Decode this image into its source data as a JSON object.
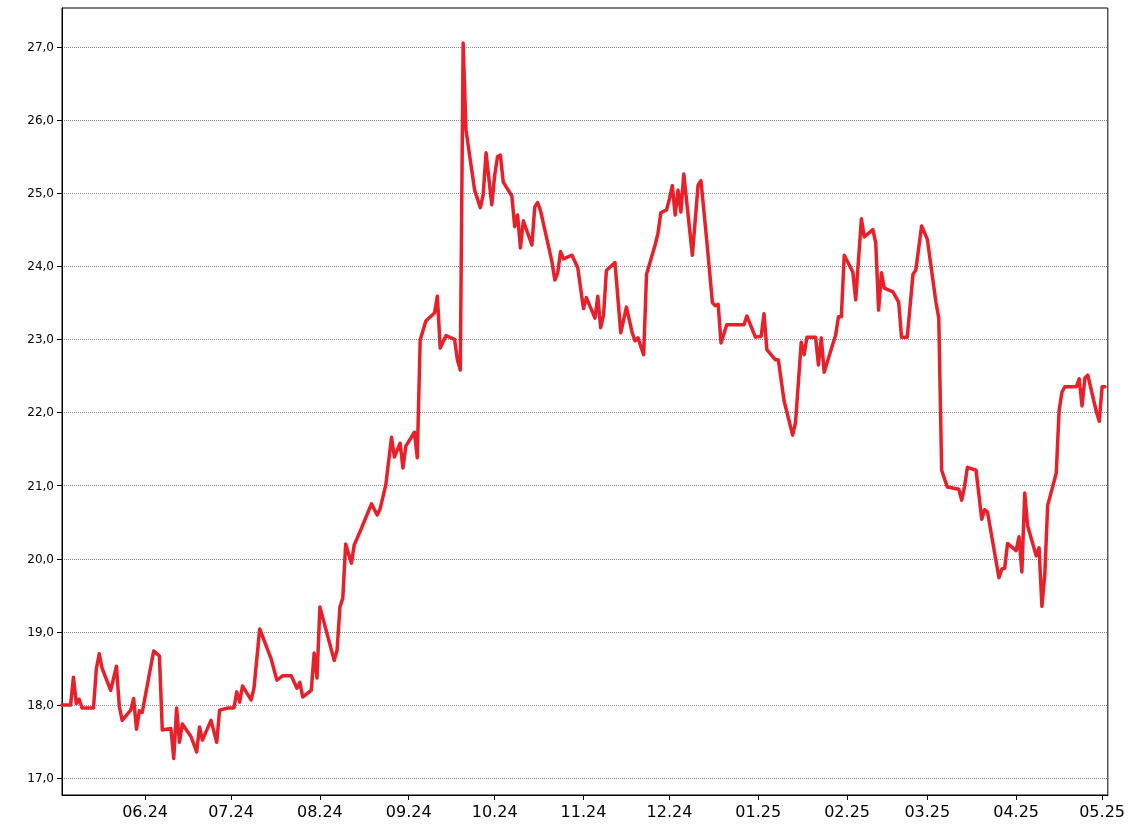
{
  "chart_data": {
    "type": "line",
    "color": "#e8202a",
    "marker": "none",
    "grid": "y",
    "xlim": [
      "2024-05-03",
      "2025-05-03"
    ],
    "ylim": [
      16.77,
      27.53
    ],
    "xticks": [
      {
        "value": "2024-06-01",
        "label": "06.24"
      },
      {
        "value": "2024-07-01",
        "label": "07.24"
      },
      {
        "value": "2024-08-01",
        "label": "08.24"
      },
      {
        "value": "2024-09-01",
        "label": "09.24"
      },
      {
        "value": "2024-10-01",
        "label": "10.24"
      },
      {
        "value": "2024-11-01",
        "label": "11.24"
      },
      {
        "value": "2024-12-01",
        "label": "12.24"
      },
      {
        "value": "2025-01-01",
        "label": "01.25"
      },
      {
        "value": "2025-02-01",
        "label": "02.25"
      },
      {
        "value": "2025-03-01",
        "label": "03.25"
      },
      {
        "value": "2025-04-01",
        "label": "04.25"
      },
      {
        "value": "2025-05-01",
        "label": "05.25"
      }
    ],
    "yticks": [
      {
        "value": 17,
        "label": "17,0"
      },
      {
        "value": 18,
        "label": "18,0"
      },
      {
        "value": 19,
        "label": "19,0"
      },
      {
        "value": 20,
        "label": "20,0"
      },
      {
        "value": 21,
        "label": "21,0"
      },
      {
        "value": 22,
        "label": "22,0"
      },
      {
        "value": 23,
        "label": "23,0"
      },
      {
        "value": 24,
        "label": "24,0"
      },
      {
        "value": 25,
        "label": "25,0"
      },
      {
        "value": 26,
        "label": "26,0"
      },
      {
        "value": 27,
        "label": "27,0"
      }
    ],
    "x": [
      "2024-05-03",
      "2024-05-06",
      "2024-05-07",
      "2024-05-08",
      "2024-05-09",
      "2024-05-10",
      "2024-05-14",
      "2024-05-15",
      "2024-05-16",
      "2024-05-17",
      "2024-05-20",
      "2024-05-22",
      "2024-05-23",
      "2024-05-24",
      "2024-05-27",
      "2024-05-28",
      "2024-05-29",
      "2024-05-30",
      "2024-05-31",
      "2024-06-04",
      "2024-06-06",
      "2024-06-07",
      "2024-06-10",
      "2024-06-11",
      "2024-06-12",
      "2024-06-13",
      "2024-06-14",
      "2024-06-17",
      "2024-06-19",
      "2024-06-20",
      "2024-06-21",
      "2024-06-24",
      "2024-06-26",
      "2024-06-27",
      "2024-06-30",
      "2024-07-02",
      "2024-07-03",
      "2024-07-04",
      "2024-07-05",
      "2024-07-08",
      "2024-07-09",
      "2024-07-11",
      "2024-07-15",
      "2024-07-17",
      "2024-07-19",
      "2024-07-22",
      "2024-07-24",
      "2024-07-25",
      "2024-07-26",
      "2024-07-29",
      "2024-07-30",
      "2024-07-31",
      "2024-08-01",
      "2024-08-06",
      "2024-08-07",
      "2024-08-08",
      "2024-08-09",
      "2024-08-10",
      "2024-08-12",
      "2024-08-13",
      "2024-08-15",
      "2024-08-17",
      "2024-08-19",
      "2024-08-21",
      "2024-08-22",
      "2024-08-24",
      "2024-08-26",
      "2024-08-27",
      "2024-08-29",
      "2024-08-30",
      "2024-08-31",
      "2024-09-03",
      "2024-09-04",
      "2024-09-05",
      "2024-09-07",
      "2024-09-10",
      "2024-09-11",
      "2024-09-12",
      "2024-09-14",
      "2024-09-17",
      "2024-09-18",
      "2024-09-19",
      "2024-09-20",
      "2024-09-21",
      "2024-09-24",
      "2024-09-26",
      "2024-09-27",
      "2024-09-28",
      "2024-09-30",
      "2024-10-01",
      "2024-10-02",
      "2024-10-03",
      "2024-10-04",
      "2024-10-07",
      "2024-10-08",
      "2024-10-09",
      "2024-10-10",
      "2024-10-11",
      "2024-10-14",
      "2024-10-15",
      "2024-10-16",
      "2024-10-17",
      "2024-10-21",
      "2024-10-22",
      "2024-10-23",
      "2024-10-24",
      "2024-10-25",
      "2024-10-28",
      "2024-10-30",
      "2024-11-01",
      "2024-11-02",
      "2024-11-05",
      "2024-11-06",
      "2024-11-07",
      "2024-11-08",
      "2024-11-09",
      "2024-11-12",
      "2024-11-14",
      "2024-11-16",
      "2024-11-18",
      "2024-11-19",
      "2024-11-20",
      "2024-11-22",
      "2024-11-23",
      "2024-11-26",
      "2024-11-27",
      "2024-11-28",
      "2024-11-30",
      "2024-12-01",
      "2024-12-02",
      "2024-12-03",
      "2024-12-04",
      "2024-12-05",
      "2024-12-06",
      "2024-12-09",
      "2024-12-11",
      "2024-12-12",
      "2024-12-14",
      "2024-12-16",
      "2024-12-17",
      "2024-12-18",
      "2024-12-19",
      "2024-12-21",
      "2024-12-27",
      "2024-12-28",
      "2024-12-31",
      "2025-01-02",
      "2025-01-03",
      "2025-01-04",
      "2025-01-07",
      "2025-01-08",
      "2025-01-10",
      "2025-01-13",
      "2025-01-14",
      "2025-01-16",
      "2025-01-17",
      "2025-01-18",
      "2025-01-21",
      "2025-01-22",
      "2025-01-23",
      "2025-01-24",
      "2025-01-28",
      "2025-01-29",
      "2025-01-30",
      "2025-01-31",
      "2025-02-03",
      "2025-02-04",
      "2025-02-06",
      "2025-02-07",
      "2025-02-10",
      "2025-02-11",
      "2025-02-12",
      "2025-02-13",
      "2025-02-14",
      "2025-02-17",
      "2025-02-19",
      "2025-02-20",
      "2025-02-22",
      "2025-02-24",
      "2025-02-25",
      "2025-02-27",
      "2025-03-01",
      "2025-03-04",
      "2025-03-05",
      "2025-03-06",
      "2025-03-08",
      "2025-03-12",
      "2025-03-13",
      "2025-03-14",
      "2025-03-15",
      "2025-03-18",
      "2025-03-20",
      "2025-03-21",
      "2025-03-22",
      "2025-03-26",
      "2025-03-27",
      "2025-03-28",
      "2025-03-29",
      "2025-04-01",
      "2025-04-02",
      "2025-04-03",
      "2025-04-04",
      "2025-04-05",
      "2025-04-08",
      "2025-04-09",
      "2025-04-10",
      "2025-04-11",
      "2025-04-12",
      "2025-04-15",
      "2025-04-16",
      "2025-04-17",
      "2025-04-18",
      "2025-04-22",
      "2025-04-23",
      "2025-04-24",
      "2025-04-25",
      "2025-04-26",
      "2025-04-29",
      "2025-04-30",
      "2025-05-01",
      "2025-05-02"
    ],
    "values": [
      18.0,
      18.0,
      18.38,
      18.02,
      18.08,
      17.96,
      17.96,
      18.5,
      18.7,
      18.5,
      18.2,
      18.53,
      17.98,
      17.79,
      17.93,
      18.09,
      17.67,
      17.92,
      17.9,
      18.74,
      18.67,
      17.66,
      17.68,
      17.27,
      17.96,
      17.49,
      17.74,
      17.57,
      17.36,
      17.7,
      17.52,
      17.79,
      17.49,
      17.93,
      17.96,
      17.96,
      18.18,
      18.04,
      18.26,
      18.07,
      18.23,
      19.04,
      18.63,
      18.34,
      18.4,
      18.4,
      18.23,
      18.31,
      18.11,
      18.2,
      18.71,
      18.37,
      19.34,
      18.61,
      18.75,
      19.34,
      19.46,
      20.2,
      19.94,
      20.19,
      20.37,
      20.56,
      20.75,
      20.6,
      20.68,
      21.01,
      21.66,
      21.39,
      21.58,
      21.24,
      21.54,
      21.73,
      21.38,
      22.99,
      23.25,
      23.36,
      23.59,
      22.88,
      23.05,
      23.0,
      22.72,
      22.58,
      27.05,
      25.86,
      25.04,
      24.8,
      24.98,
      25.55,
      24.84,
      25.24,
      25.5,
      25.52,
      25.15,
      24.96,
      24.54,
      24.7,
      24.25,
      24.62,
      24.29,
      24.81,
      24.87,
      24.76,
      24.06,
      23.81,
      23.91,
      24.2,
      24.1,
      24.15,
      23.98,
      23.42,
      23.57,
      23.29,
      23.59,
      23.16,
      23.33,
      23.94,
      24.05,
      23.09,
      23.44,
      23.09,
      22.98,
      23.02,
      22.79,
      23.89,
      24.29,
      24.45,
      24.73,
      24.77,
      24.92,
      25.1,
      24.7,
      25.04,
      24.74,
      25.26,
      24.15,
      25.11,
      25.17,
      24.36,
      23.5,
      23.46,
      23.48,
      22.95,
      23.2,
      23.2,
      23.32,
      23.03,
      23.04,
      23.35,
      22.86,
      22.72,
      22.72,
      22.16,
      21.69,
      21.86,
      22.96,
      22.79,
      23.03,
      23.03,
      22.65,
      23.02,
      22.55,
      23.06,
      23.31,
      23.31,
      24.15,
      23.92,
      23.54,
      24.65,
      24.4,
      24.5,
      24.32,
      23.4,
      23.91,
      23.7,
      23.65,
      23.51,
      23.03,
      23.03,
      23.89,
      23.95,
      24.55,
      24.37,
      23.51,
      23.29,
      21.21,
      20.98,
      20.95,
      20.8,
      20.99,
      21.25,
      21.21,
      20.54,
      20.67,
      20.64,
      19.74,
      19.86,
      19.87,
      20.21,
      20.11,
      20.3,
      19.82,
      20.9,
      20.45,
      20.04,
      20.15,
      19.35,
      19.78,
      20.73,
      21.17,
      22.03,
      22.28,
      22.35,
      22.35,
      22.46,
      22.09,
      22.47,
      22.51,
      22.01,
      21.88,
      22.35,
      22.35
    ]
  }
}
